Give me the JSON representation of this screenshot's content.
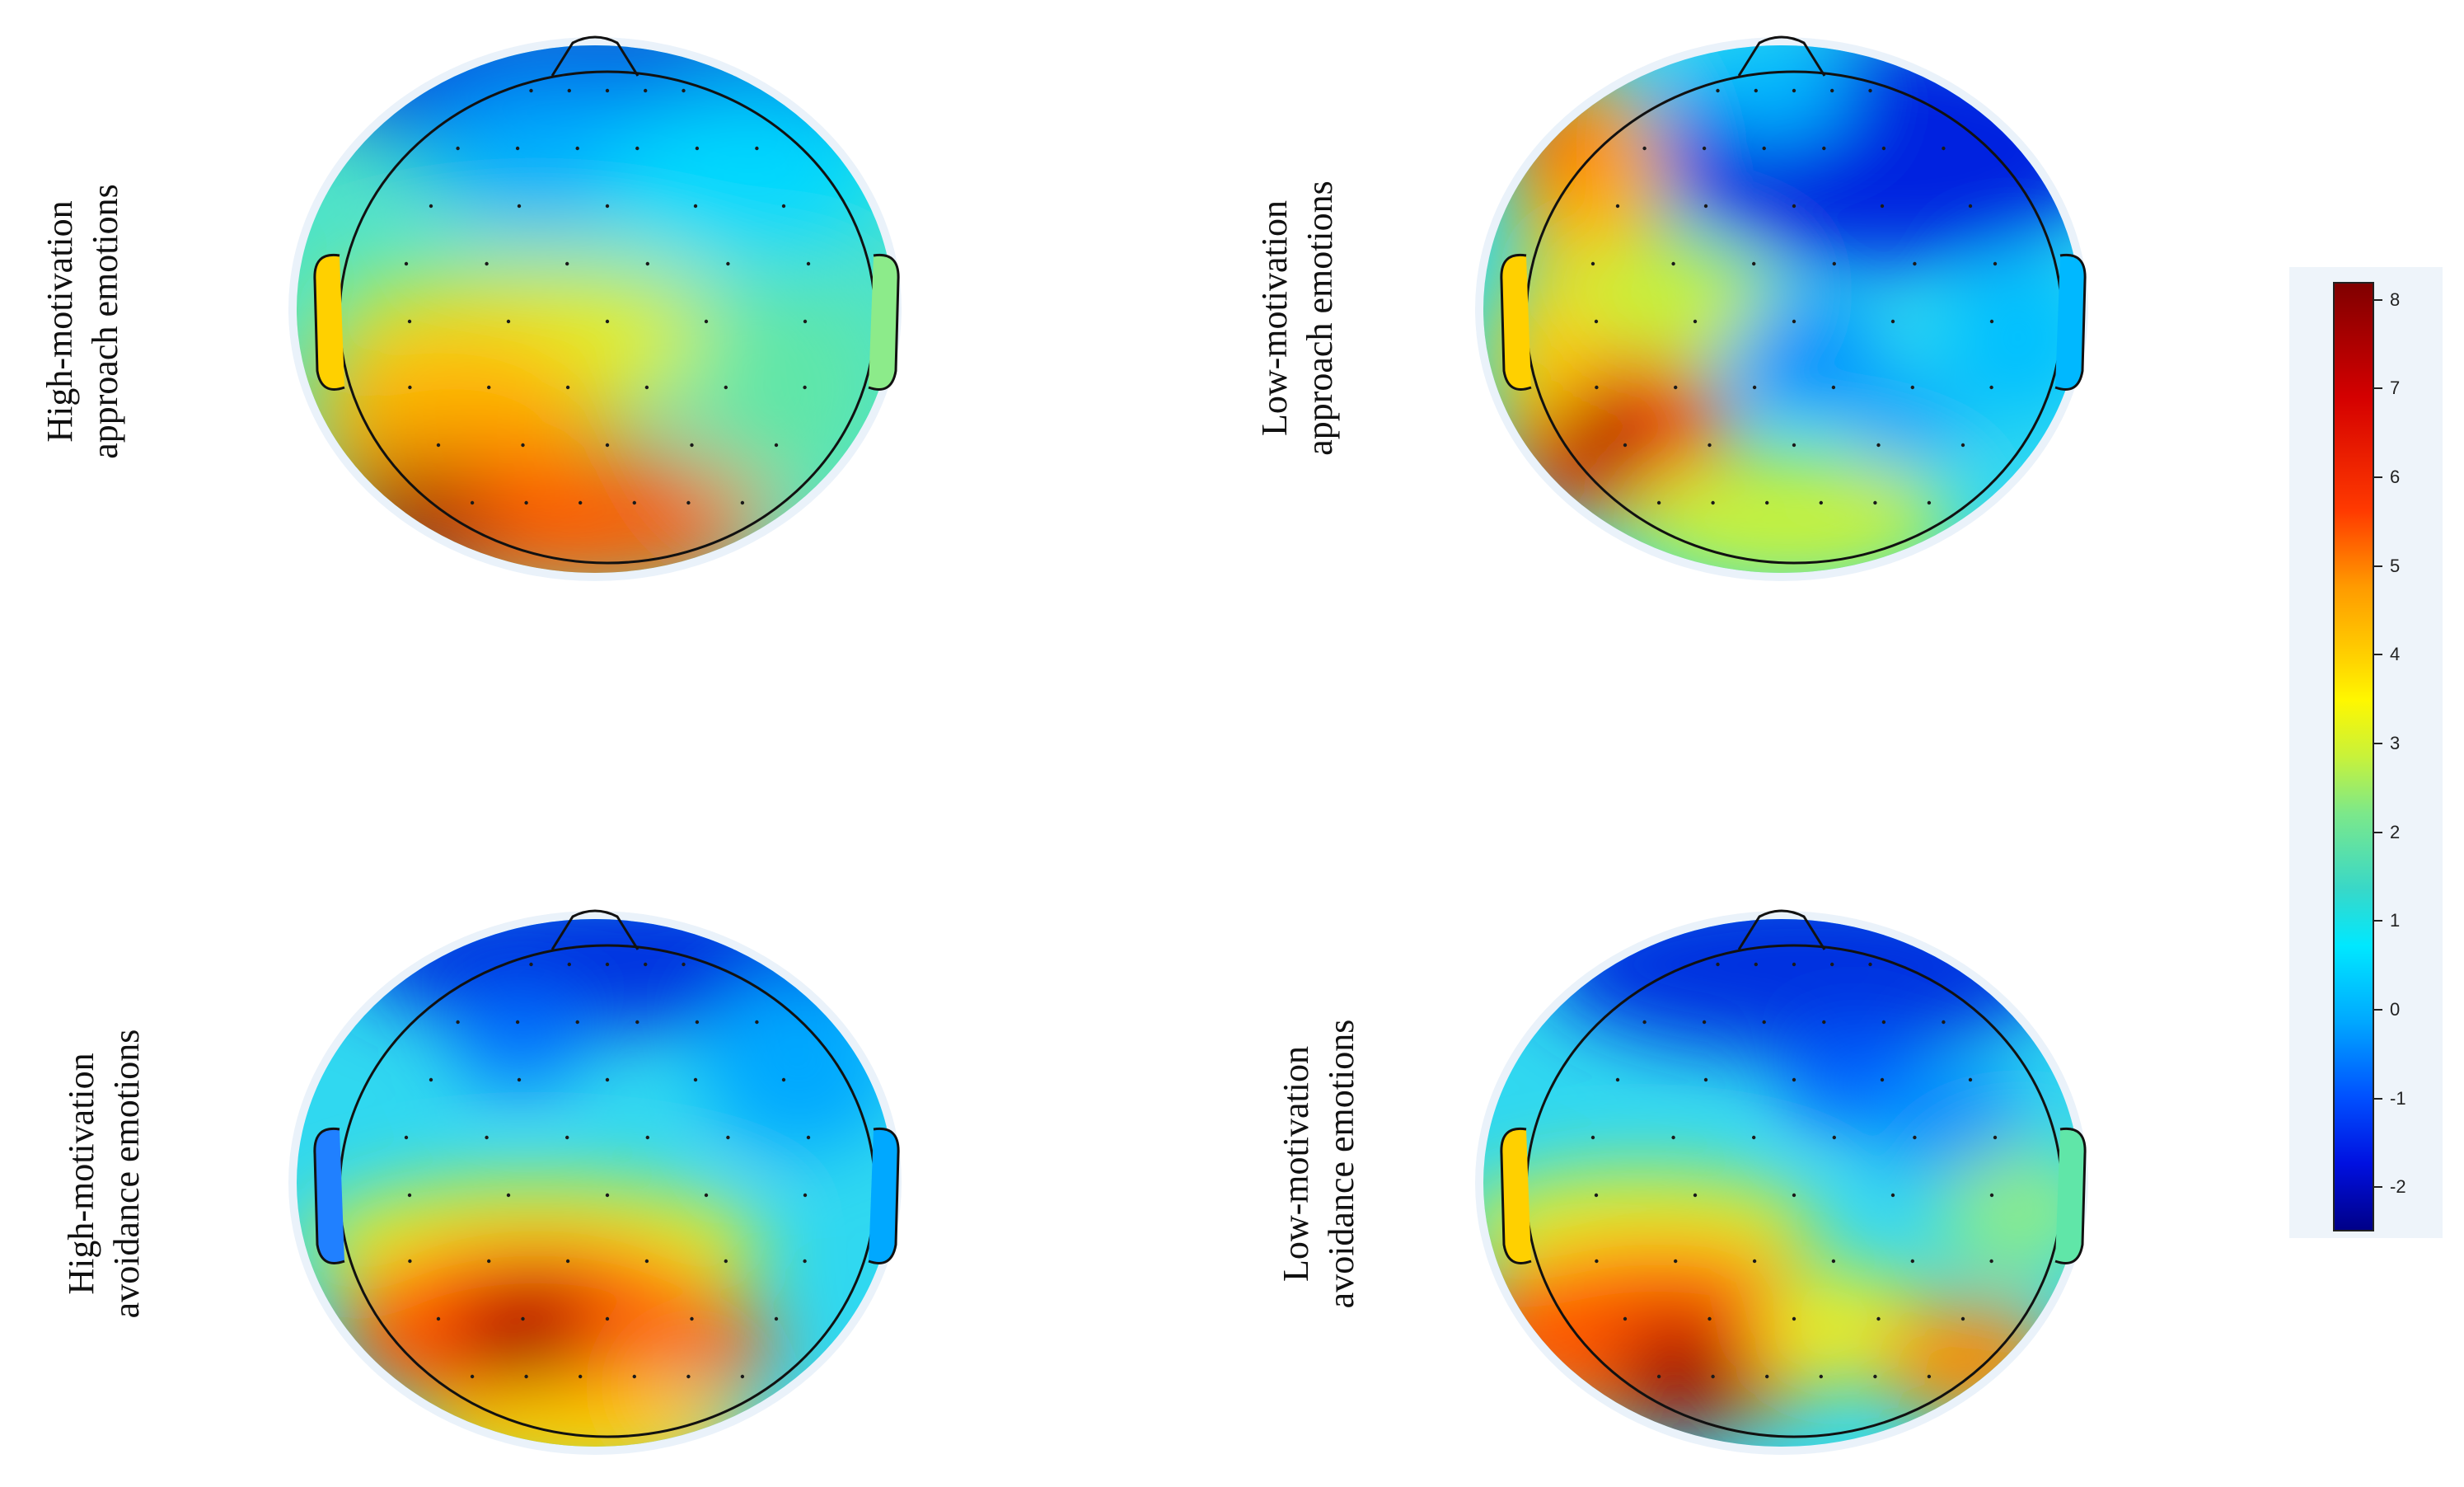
{
  "panels": [
    {
      "id": "high-approach",
      "label_lines": [
        "High-motivation",
        "approach emotions"
      ]
    },
    {
      "id": "low-approach",
      "label_lines": [
        "Low-motivation",
        "approach emotions"
      ]
    },
    {
      "id": "high-avoidance",
      "label_lines": [
        "High-motivation",
        "avoidance emotions"
      ]
    },
    {
      "id": "low-avoidance",
      "label_lines": [
        "Low-motivation",
        "avoidance emotions"
      ]
    }
  ],
  "colorbar": {
    "ticks": [
      "8",
      "7",
      "6",
      "5",
      "4",
      "3",
      "2",
      "1",
      "0",
      "-1",
      "-2"
    ],
    "range": [
      -2.5,
      8.2
    ],
    "colormap": "jet",
    "colors": {
      "high": "#800000",
      "mid": "#fff700",
      "low": "#000088"
    }
  }
}
